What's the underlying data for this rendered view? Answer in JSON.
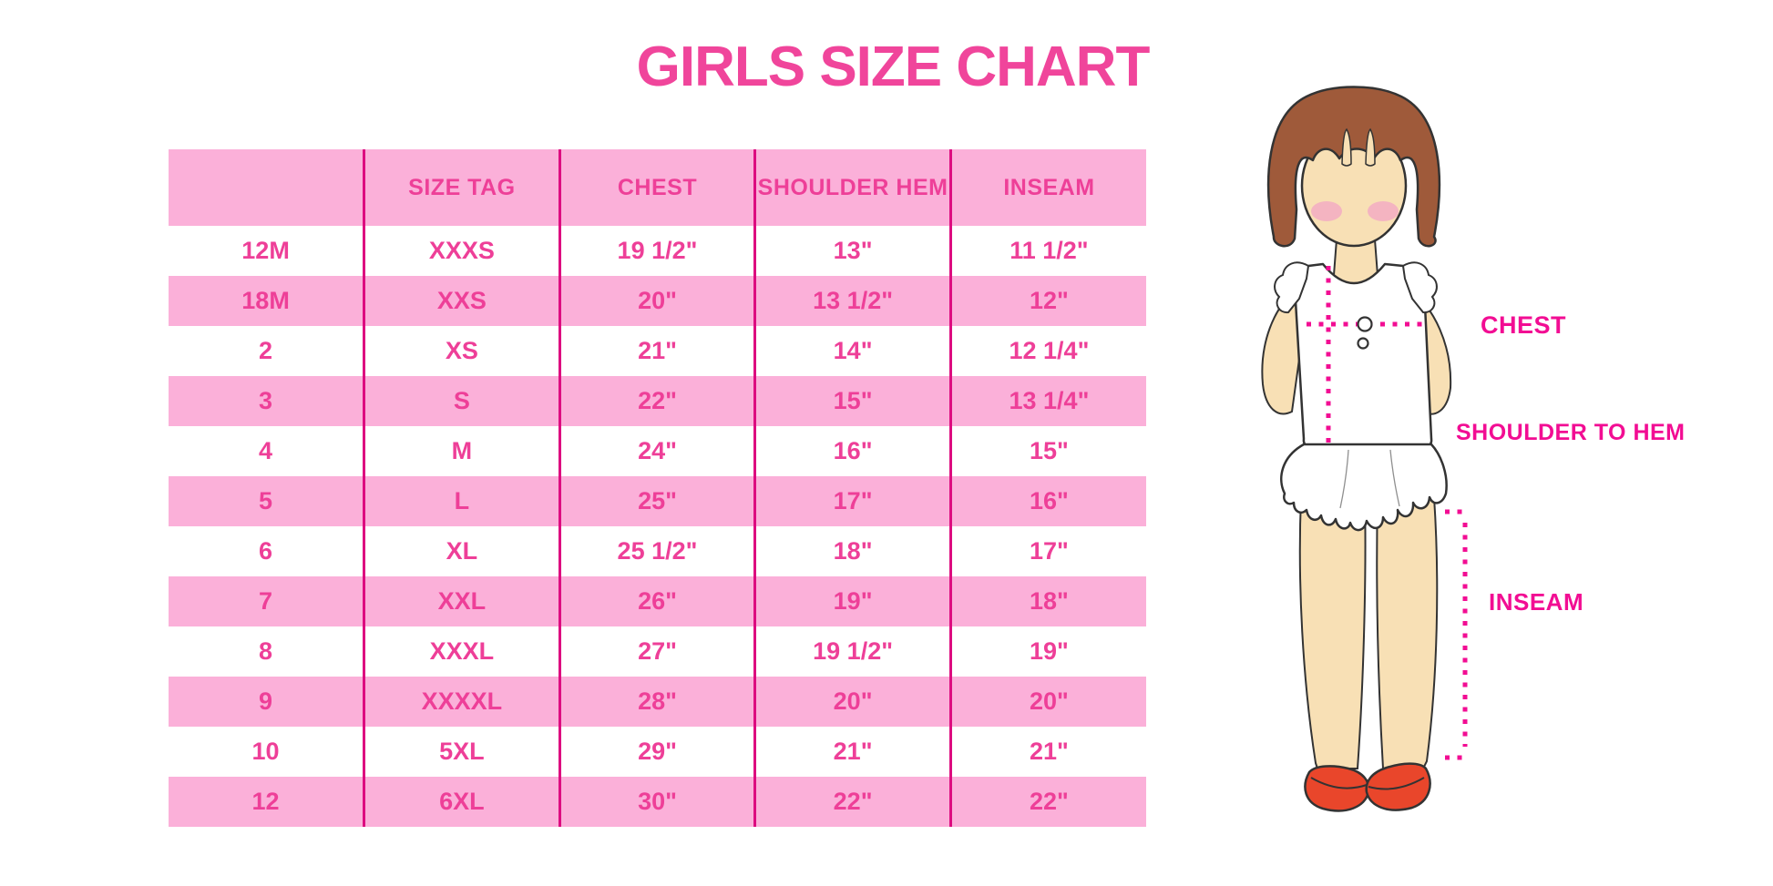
{
  "title": "GIRLS SIZE CHART",
  "chart_data": {
    "type": "table",
    "columns": [
      "",
      "SIZE TAG",
      "CHEST",
      "SHOULDER HEM",
      "INSEAM"
    ],
    "rows": [
      [
        "12M",
        "XXXS",
        "19 1/2\"",
        "13\"",
        "11 1/2\""
      ],
      [
        "18M",
        "XXS",
        "20\"",
        "13 1/2\"",
        "12\""
      ],
      [
        "2",
        "XS",
        "21\"",
        "14\"",
        "12 1/4\""
      ],
      [
        "3",
        "S",
        "22\"",
        "15\"",
        "13 1/4\""
      ],
      [
        "4",
        "M",
        "24\"",
        "16\"",
        "15\""
      ],
      [
        "5",
        "L",
        "25\"",
        "17\"",
        "16\""
      ],
      [
        "6",
        "XL",
        "25 1/2\"",
        "18\"",
        "17\""
      ],
      [
        "7",
        "XXL",
        "26\"",
        "19\"",
        "18\""
      ],
      [
        "8",
        "XXXL",
        "27\"",
        "19 1/2\"",
        "19\""
      ],
      [
        "9",
        "XXXXL",
        "28\"",
        "20\"",
        "20\""
      ],
      [
        "10",
        "5XL",
        "29\"",
        "21\"",
        "21\""
      ],
      [
        "12",
        "6XL",
        "30\"",
        "22\"",
        "22\""
      ]
    ]
  },
  "figure": {
    "labels": {
      "chest": "CHEST",
      "shoulder_to_hem": "SHOULDER TO HEM",
      "inseam": "INSEAM"
    }
  },
  "colors": {
    "title_pink": "#F0459B",
    "band_pink": "#FBB0D9",
    "cell_text_pink": "#EE3F98",
    "divider_magenta": "#DD0C80",
    "label_magenta": "#F20D93",
    "hair_brown": "#9F5A3A",
    "skin": "#F8E0B5",
    "blush": "#F2A9C4",
    "shoe_red": "#E9462B",
    "outline": "#333333"
  }
}
